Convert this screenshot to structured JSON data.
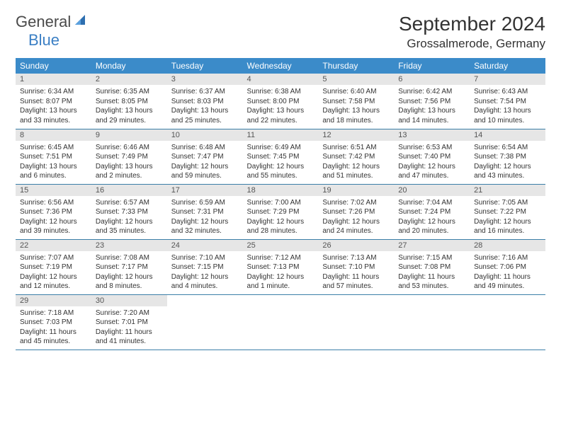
{
  "logo": {
    "text1": "General",
    "text2": "Blue"
  },
  "title": "September 2024",
  "location": "Grossalmerode, Germany",
  "colors": {
    "header_bg": "#3b8bc9",
    "header_fg": "#ffffff",
    "daynum_bg": "#e6e6e6",
    "daynum_fg": "#555555",
    "border": "#3b7fa8",
    "logo_gray": "#4a4a4a",
    "logo_blue": "#3b7fc4"
  },
  "day_headers": [
    "Sunday",
    "Monday",
    "Tuesday",
    "Wednesday",
    "Thursday",
    "Friday",
    "Saturday"
  ],
  "days": [
    {
      "n": "1",
      "sr": "6:34 AM",
      "ss": "8:07 PM",
      "dl": "13 hours and 33 minutes."
    },
    {
      "n": "2",
      "sr": "6:35 AM",
      "ss": "8:05 PM",
      "dl": "13 hours and 29 minutes."
    },
    {
      "n": "3",
      "sr": "6:37 AM",
      "ss": "8:03 PM",
      "dl": "13 hours and 25 minutes."
    },
    {
      "n": "4",
      "sr": "6:38 AM",
      "ss": "8:00 PM",
      "dl": "13 hours and 22 minutes."
    },
    {
      "n": "5",
      "sr": "6:40 AM",
      "ss": "7:58 PM",
      "dl": "13 hours and 18 minutes."
    },
    {
      "n": "6",
      "sr": "6:42 AM",
      "ss": "7:56 PM",
      "dl": "13 hours and 14 minutes."
    },
    {
      "n": "7",
      "sr": "6:43 AM",
      "ss": "7:54 PM",
      "dl": "13 hours and 10 minutes."
    },
    {
      "n": "8",
      "sr": "6:45 AM",
      "ss": "7:51 PM",
      "dl": "13 hours and 6 minutes."
    },
    {
      "n": "9",
      "sr": "6:46 AM",
      "ss": "7:49 PM",
      "dl": "13 hours and 2 minutes."
    },
    {
      "n": "10",
      "sr": "6:48 AM",
      "ss": "7:47 PM",
      "dl": "12 hours and 59 minutes."
    },
    {
      "n": "11",
      "sr": "6:49 AM",
      "ss": "7:45 PM",
      "dl": "12 hours and 55 minutes."
    },
    {
      "n": "12",
      "sr": "6:51 AM",
      "ss": "7:42 PM",
      "dl": "12 hours and 51 minutes."
    },
    {
      "n": "13",
      "sr": "6:53 AM",
      "ss": "7:40 PM",
      "dl": "12 hours and 47 minutes."
    },
    {
      "n": "14",
      "sr": "6:54 AM",
      "ss": "7:38 PM",
      "dl": "12 hours and 43 minutes."
    },
    {
      "n": "15",
      "sr": "6:56 AM",
      "ss": "7:36 PM",
      "dl": "12 hours and 39 minutes."
    },
    {
      "n": "16",
      "sr": "6:57 AM",
      "ss": "7:33 PM",
      "dl": "12 hours and 35 minutes."
    },
    {
      "n": "17",
      "sr": "6:59 AM",
      "ss": "7:31 PM",
      "dl": "12 hours and 32 minutes."
    },
    {
      "n": "18",
      "sr": "7:00 AM",
      "ss": "7:29 PM",
      "dl": "12 hours and 28 minutes."
    },
    {
      "n": "19",
      "sr": "7:02 AM",
      "ss": "7:26 PM",
      "dl": "12 hours and 24 minutes."
    },
    {
      "n": "20",
      "sr": "7:04 AM",
      "ss": "7:24 PM",
      "dl": "12 hours and 20 minutes."
    },
    {
      "n": "21",
      "sr": "7:05 AM",
      "ss": "7:22 PM",
      "dl": "12 hours and 16 minutes."
    },
    {
      "n": "22",
      "sr": "7:07 AM",
      "ss": "7:19 PM",
      "dl": "12 hours and 12 minutes."
    },
    {
      "n": "23",
      "sr": "7:08 AM",
      "ss": "7:17 PM",
      "dl": "12 hours and 8 minutes."
    },
    {
      "n": "24",
      "sr": "7:10 AM",
      "ss": "7:15 PM",
      "dl": "12 hours and 4 minutes."
    },
    {
      "n": "25",
      "sr": "7:12 AM",
      "ss": "7:13 PM",
      "dl": "12 hours and 1 minute."
    },
    {
      "n": "26",
      "sr": "7:13 AM",
      "ss": "7:10 PM",
      "dl": "11 hours and 57 minutes."
    },
    {
      "n": "27",
      "sr": "7:15 AM",
      "ss": "7:08 PM",
      "dl": "11 hours and 53 minutes."
    },
    {
      "n": "28",
      "sr": "7:16 AM",
      "ss": "7:06 PM",
      "dl": "11 hours and 49 minutes."
    },
    {
      "n": "29",
      "sr": "7:18 AM",
      "ss": "7:03 PM",
      "dl": "11 hours and 45 minutes."
    },
    {
      "n": "30",
      "sr": "7:20 AM",
      "ss": "7:01 PM",
      "dl": "11 hours and 41 minutes."
    }
  ],
  "labels": {
    "sunrise": "Sunrise:",
    "sunset": "Sunset:",
    "daylight": "Daylight:"
  }
}
